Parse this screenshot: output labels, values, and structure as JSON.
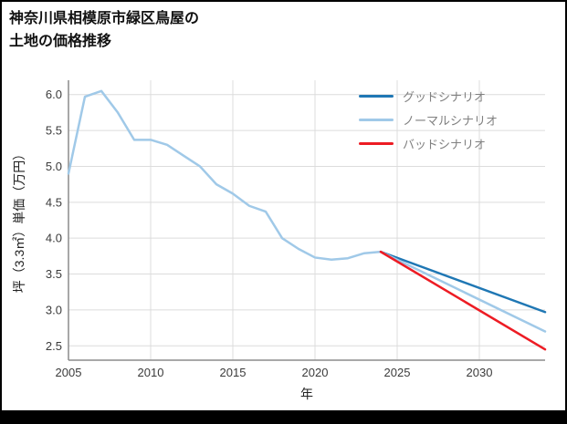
{
  "title": {
    "line1": "神奈川県相模原市緑区鳥屋の",
    "line2": "土地の価格推移"
  },
  "chart_data": {
    "type": "line",
    "title": "神奈川県相模原市緑区鳥屋の土地の価格推移",
    "xlabel": "年",
    "ylabel": "坪（3.3㎡）単価（万円）",
    "xlim": [
      2005,
      2034
    ],
    "ylim": [
      2.3,
      6.2
    ],
    "x_ticks": [
      2005,
      2010,
      2015,
      2020,
      2025,
      2030
    ],
    "y_ticks": [
      2.5,
      3.0,
      3.5,
      4.0,
      4.5,
      5.0,
      5.5,
      6.0
    ],
    "grid": true,
    "legend_position": "top-right",
    "colors": {
      "grid": "#dcdcdc",
      "axis": "#8c8c8c",
      "good": "#1f77b4",
      "normal": "#a0c9e8",
      "bad": "#ed1c24"
    },
    "series": [
      {
        "name": "",
        "color": "#a0c9e8",
        "x": [
          2005,
          2006,
          2007,
          2008,
          2009,
          2010,
          2011,
          2012,
          2013,
          2014,
          2015,
          2016,
          2017,
          2018,
          2019,
          2020,
          2021,
          2022,
          2023,
          2024
        ],
        "y": [
          4.9,
          5.97,
          6.05,
          5.75,
          5.37,
          5.37,
          5.3,
          5.15,
          5.0,
          4.75,
          4.62,
          4.45,
          4.37,
          4.0,
          3.85,
          3.73,
          3.7,
          3.72,
          3.79,
          3.81
        ]
      },
      {
        "name": "グッドシナリオ",
        "color": "#1f77b4",
        "x": [
          2024,
          2034
        ],
        "y": [
          3.81,
          2.97
        ]
      },
      {
        "name": "ノーマルシナリオ",
        "color": "#a0c9e8",
        "x": [
          2024,
          2034
        ],
        "y": [
          3.81,
          2.7
        ]
      },
      {
        "name": "バッドシナリオ",
        "color": "#ed1c24",
        "x": [
          2024,
          2034
        ],
        "y": [
          3.81,
          2.45
        ]
      }
    ]
  }
}
